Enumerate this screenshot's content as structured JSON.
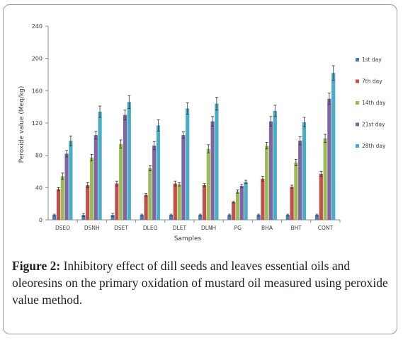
{
  "chart_data": {
    "type": "bar",
    "ylabel": "Peroxide value (Meq/kg)",
    "xlabel": "Samples",
    "ylim": [
      0,
      240
    ],
    "yticks": [
      0,
      40,
      80,
      120,
      160,
      200,
      240
    ],
    "categories": [
      "DSEO",
      "DSNH",
      "DSET",
      "DLEO",
      "DLET",
      "DLNH",
      "PG",
      "BHA",
      "BHT",
      "CONT"
    ],
    "series": [
      {
        "name": "1st day",
        "color": "#4a7ab8",
        "values": [
          6,
          6,
          6,
          6,
          6,
          6,
          6,
          6,
          6,
          6
        ]
      },
      {
        "name": "7th day",
        "color": "#c0504d",
        "values": [
          38,
          43,
          45,
          31,
          45,
          43,
          22,
          51,
          41,
          57
        ]
      },
      {
        "name": "14th day",
        "color": "#9bbb59",
        "values": [
          54,
          77,
          94,
          64,
          44,
          88,
          35,
          92,
          71,
          101
        ]
      },
      {
        "name": "21st day",
        "color": "#8064a2",
        "values": [
          82,
          105,
          130,
          92,
          105,
          122,
          42,
          122,
          98,
          150
        ]
      },
      {
        "name": "28th day",
        "color": "#4bacc6",
        "values": [
          98,
          134,
          146,
          117,
          138,
          144,
          47,
          135,
          121,
          182
        ]
      }
    ],
    "errors": [
      [
        1,
        2,
        2,
        1,
        1,
        1,
        1,
        1,
        1,
        1
      ],
      [
        2,
        3,
        3,
        2,
        3,
        2,
        1,
        3,
        2,
        3
      ],
      [
        4,
        4,
        5,
        3,
        2,
        5,
        2,
        4,
        4,
        5
      ],
      [
        4,
        5,
        6,
        5,
        4,
        6,
        2,
        6,
        5,
        7
      ],
      [
        6,
        7,
        8,
        7,
        7,
        8,
        2,
        7,
        6,
        9
      ]
    ],
    "legend_position": "right",
    "grid": false
  },
  "caption": {
    "label": "Figure 2:",
    "text": " Inhibitory effect of dill seeds and leaves essential oils and oleoresins on the primary oxidation of mustard oil measured using peroxide value method."
  }
}
